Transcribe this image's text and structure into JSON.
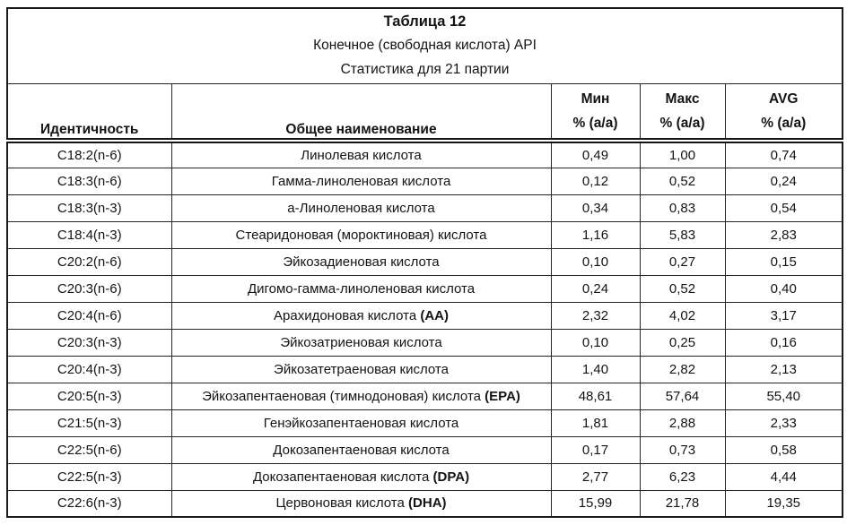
{
  "title": {
    "line1": "Таблица 12",
    "line2": "Конечное (свободная кислота) API",
    "line3": "Статистика для 21 партии"
  },
  "colors": {
    "text": "#141414",
    "border": "#262626",
    "background": "#ffffff"
  },
  "table": {
    "columns": {
      "identity": "Идентичность",
      "common_name": "Общее наименование",
      "min_line1": "Мин",
      "min_line2": "% (a/a)",
      "max_line1": "Макс",
      "max_line2": "% (a/a)",
      "avg_line1": "AVG",
      "avg_line2": "% (a/a)"
    },
    "rows": [
      {
        "identity": "C18:2(n-6)",
        "name": "Линолевая кислота",
        "bold": "",
        "min": "0,49",
        "max": "1,00",
        "avg": "0,74"
      },
      {
        "identity": "C18:3(n-6)",
        "name": "Гамма-линоленовая кислота",
        "bold": "",
        "min": "0,12",
        "max": "0,52",
        "avg": "0,24"
      },
      {
        "identity": "C18:3(n-3)",
        "name": "а-Линоленовая кислота",
        "bold": "",
        "min": "0,34",
        "max": "0,83",
        "avg": "0,54"
      },
      {
        "identity": "C18:4(n-3)",
        "name": "Стеаридоновая (мороктиновая) кислота",
        "bold": "",
        "min": "1,16",
        "max": "5,83",
        "avg": "2,83"
      },
      {
        "identity": "C20:2(n-6)",
        "name": "Эйкозадиеновая кислота",
        "bold": "",
        "min": "0,10",
        "max": "0,27",
        "avg": "0,15"
      },
      {
        "identity": "C20:3(n-6)",
        "name": "Дигомо-гамма-линоленовая кислота",
        "bold": "",
        "min": "0,24",
        "max": "0,52",
        "avg": "0,40"
      },
      {
        "identity": "C20:4(n-6)",
        "name": "Арахидоновая кислота ",
        "bold": "(AA)",
        "min": "2,32",
        "max": "4,02",
        "avg": "3,17"
      },
      {
        "identity": "C20:3(n-3)",
        "name": "Эйкозатриеновая кислота",
        "bold": "",
        "min": "0,10",
        "max": "0,25",
        "avg": "0,16"
      },
      {
        "identity": "C20:4(n-3)",
        "name": "Эйкозатетраеновая кислота",
        "bold": "",
        "min": "1,40",
        "max": "2,82",
        "avg": "2,13"
      },
      {
        "identity": "C20:5(n-3)",
        "name": "Эйкозапентаеновая (тимнодоновая) кислота ",
        "bold": "(EPA)",
        "min": "48,61",
        "max": "57,64",
        "avg": "55,40"
      },
      {
        "identity": "C21:5(n-3)",
        "name": "Генэйкозапентаеновая кислота",
        "bold": "",
        "min": "1,81",
        "max": "2,88",
        "avg": "2,33"
      },
      {
        "identity": "C22:5(n-6)",
        "name": "Докозапентаеновая кислота",
        "bold": "",
        "min": "0,17",
        "max": "0,73",
        "avg": "0,58"
      },
      {
        "identity": "C22:5(n-3)",
        "name": "Докозапентаеновая кислота ",
        "bold": "(DPA)",
        "min": "2,77",
        "max": "6,23",
        "avg": "4,44"
      },
      {
        "identity": "C22:6(n-3)",
        "name": "Цервоновая кислота ",
        "bold": "(DHA)",
        "min": "15,99",
        "max": "21,78",
        "avg": "19,35"
      }
    ]
  }
}
